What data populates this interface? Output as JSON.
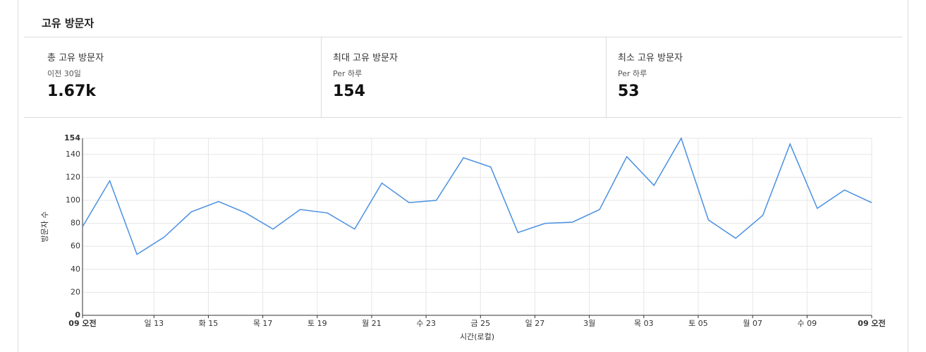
{
  "header": {
    "title": "고유 방문자"
  },
  "stats": [
    {
      "label": "총 고유 방문자",
      "sub": "이전 30일",
      "value": "1.67k"
    },
    {
      "label": "최대 고유 방문자",
      "sub": "Per 하루",
      "value": "154"
    },
    {
      "label": "최소 고유 방문자",
      "sub": "Per 하루",
      "value": "53"
    }
  ],
  "chart_data": {
    "type": "line",
    "xlabel": "시간(로컬)",
    "ylabel": "방문자 수",
    "x": [
      0,
      24,
      48,
      72,
      96,
      120,
      144,
      168,
      192,
      216,
      240,
      264,
      288,
      312,
      336,
      360,
      384,
      408,
      432,
      456,
      480,
      504,
      528,
      552,
      576,
      600,
      624,
      648,
      672,
      696
    ],
    "series": [
      {
        "name": "방문자 수",
        "color": "#4a90e2",
        "values": [
          77,
          117,
          53,
          68,
          90,
          99,
          89,
          75,
          92,
          89,
          75,
          115,
          98,
          100,
          137,
          129,
          72,
          80,
          81,
          92,
          138,
          113,
          154,
          83,
          67,
          87,
          149,
          93,
          109,
          98
        ]
      }
    ],
    "xlim": [
      0,
      696
    ],
    "xticks": [
      {
        "value": 0,
        "label": "09 오전"
      },
      {
        "value": 63,
        "label": "일 13"
      },
      {
        "value": 111,
        "label": "화 15"
      },
      {
        "value": 159,
        "label": "목 17"
      },
      {
        "value": 207,
        "label": "토 19"
      },
      {
        "value": 255,
        "label": "월 21"
      },
      {
        "value": 303,
        "label": "수 23"
      },
      {
        "value": 351,
        "label": "금 25"
      },
      {
        "value": 399,
        "label": "일 27"
      },
      {
        "value": 447,
        "label": "3월"
      },
      {
        "value": 495,
        "label": "목 03"
      },
      {
        "value": 543,
        "label": "토 05"
      },
      {
        "value": 591,
        "label": "월 07"
      },
      {
        "value": 639,
        "label": "수 09"
      },
      {
        "value": 696,
        "label": "09 오전"
      }
    ],
    "ylim": [
      0,
      154
    ],
    "yticks": [
      0,
      20,
      40,
      60,
      80,
      100,
      120,
      140,
      154
    ],
    "grid": true
  }
}
